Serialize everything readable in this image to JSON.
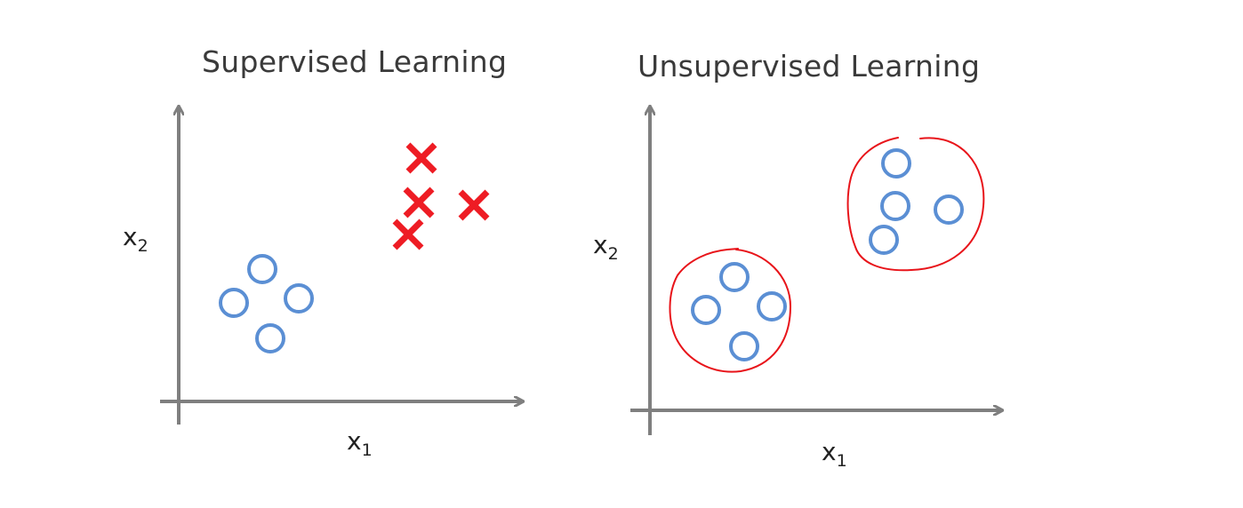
{
  "panels": [
    {
      "title": "Supervised Learning",
      "x_axis": {
        "symbol": "x",
        "subscript": "1"
      },
      "y_axis": {
        "symbol": "x",
        "subscript": "2"
      },
      "marker_color_o": "#5b8fd4",
      "marker_color_x": "#ee1c24",
      "class_o_count": 4,
      "class_x_count": 4
    },
    {
      "title": "Unsupervised Learning",
      "x_axis": {
        "symbol": "x",
        "subscript": "1"
      },
      "y_axis": {
        "symbol": "x",
        "subscript": "2"
      },
      "marker_color_o": "#5b8fd4",
      "cluster_outline_color": "#e8141a",
      "clusters": 2
    }
  ],
  "axis_color": "#7f7f7f"
}
